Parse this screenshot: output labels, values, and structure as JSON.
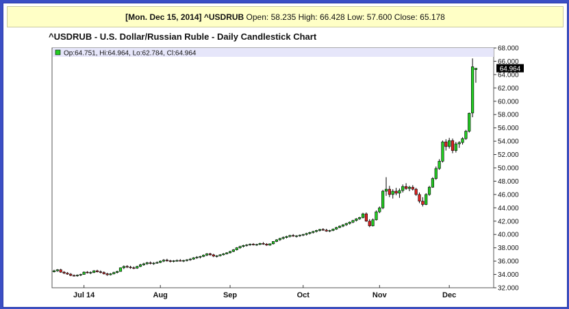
{
  "banner": {
    "date": "[Mon. Dec 15, 2014]",
    "symbol": "^USDRUB",
    "open_label": "Open:",
    "open": "58.235",
    "high_label": "High:",
    "high": "66.428",
    "low_label": "Low:",
    "low": "57.600",
    "close_label": "Close:",
    "close": "65.178"
  },
  "chart_title": "^USDRUB - U.S. Dollar/Russian Ruble - Daily Candlestick Chart",
  "legend": {
    "text": "Op:64.751, Hi:64.964, Lo:62.784, Cl:64.964",
    "swatch_color": "#22cc22"
  },
  "last_price_tag": "64.964",
  "colors": {
    "up": "#22cc22",
    "down": "#dd2222",
    "frame": "#3b4fc4",
    "legend_band": "#e6e6fa"
  },
  "chart_data": {
    "type": "candlestick",
    "title": "^USDRUB - U.S. Dollar/Russian Ruble - Daily Candlestick Chart",
    "ylim": [
      32,
      68
    ],
    "yticks": [
      "32.000",
      "34.000",
      "36.000",
      "38.000",
      "40.000",
      "42.000",
      "44.000",
      "46.000",
      "48.000",
      "50.000",
      "52.000",
      "54.000",
      "56.000",
      "58.000",
      "60.000",
      "62.000",
      "64.000",
      "66.000",
      "68.000"
    ],
    "ytick_values": [
      32,
      34,
      36,
      38,
      40,
      42,
      44,
      46,
      48,
      50,
      52,
      54,
      56,
      58,
      60,
      62,
      64,
      66,
      68
    ],
    "month_labels": [
      {
        "label": "Jul 14",
        "index": 9
      },
      {
        "label": "Aug",
        "index": 32
      },
      {
        "label": "Sep",
        "index": 53
      },
      {
        "label": "Oct",
        "index": 75
      },
      {
        "label": "Nov",
        "index": 98
      },
      {
        "label": "Dec",
        "index": 119
      }
    ],
    "ohlc": [
      [
        34.4,
        34.7,
        34.3,
        34.55
      ],
      [
        34.55,
        34.8,
        34.4,
        34.7
      ],
      [
        34.7,
        34.85,
        34.25,
        34.35
      ],
      [
        34.35,
        34.5,
        34.05,
        34.2
      ],
      [
        34.2,
        34.35,
        33.95,
        34.05
      ],
      [
        34.05,
        34.2,
        33.75,
        33.85
      ],
      [
        33.85,
        34.0,
        33.7,
        33.8
      ],
      [
        33.8,
        34.0,
        33.65,
        33.9
      ],
      [
        33.9,
        34.1,
        33.75,
        34.0
      ],
      [
        34.0,
        34.45,
        33.95,
        34.35
      ],
      [
        34.35,
        34.5,
        34.15,
        34.25
      ],
      [
        34.25,
        34.45,
        34.05,
        34.3
      ],
      [
        34.3,
        34.65,
        34.2,
        34.55
      ],
      [
        34.55,
        34.7,
        34.3,
        34.4
      ],
      [
        34.4,
        34.6,
        34.15,
        34.3
      ],
      [
        34.3,
        34.45,
        34.0,
        34.1
      ],
      [
        34.1,
        34.25,
        33.8,
        33.95
      ],
      [
        33.95,
        34.2,
        33.85,
        34.1
      ],
      [
        34.1,
        34.4,
        34.0,
        34.3
      ],
      [
        34.3,
        34.55,
        34.15,
        34.45
      ],
      [
        34.45,
        35.05,
        34.4,
        35.0
      ],
      [
        35.0,
        35.35,
        34.8,
        35.2
      ],
      [
        35.2,
        35.4,
        34.95,
        35.1
      ],
      [
        35.1,
        35.3,
        34.85,
        35.0
      ],
      [
        35.0,
        35.2,
        34.8,
        34.95
      ],
      [
        34.95,
        35.3,
        34.85,
        35.2
      ],
      [
        35.2,
        35.6,
        35.1,
        35.45
      ],
      [
        35.45,
        35.75,
        35.3,
        35.6
      ],
      [
        35.6,
        35.9,
        35.45,
        35.75
      ],
      [
        35.75,
        35.95,
        35.5,
        35.65
      ],
      [
        35.65,
        35.85,
        35.45,
        35.7
      ],
      [
        35.7,
        35.95,
        35.6,
        35.8
      ],
      [
        35.8,
        36.1,
        35.7,
        36.0
      ],
      [
        36.0,
        36.3,
        35.85,
        36.15
      ],
      [
        36.15,
        36.35,
        35.9,
        36.05
      ],
      [
        36.05,
        36.2,
        35.8,
        35.95
      ],
      [
        35.95,
        36.15,
        35.8,
        36.05
      ],
      [
        36.05,
        36.25,
        35.9,
        36.1
      ],
      [
        36.1,
        36.3,
        35.95,
        36.0
      ],
      [
        36.0,
        36.2,
        35.85,
        36.1
      ],
      [
        36.1,
        36.3,
        35.95,
        36.2
      ],
      [
        36.2,
        36.45,
        36.05,
        36.3
      ],
      [
        36.3,
        36.6,
        36.2,
        36.5
      ],
      [
        36.5,
        36.75,
        36.35,
        36.6
      ],
      [
        36.6,
        36.8,
        36.4,
        36.7
      ],
      [
        36.7,
        37.0,
        36.6,
        36.9
      ],
      [
        36.9,
        37.2,
        36.75,
        37.1
      ],
      [
        37.1,
        37.25,
        36.8,
        36.95
      ],
      [
        36.95,
        37.1,
        36.6,
        36.75
      ],
      [
        36.75,
        36.9,
        36.55,
        36.8
      ],
      [
        36.8,
        37.05,
        36.7,
        36.95
      ],
      [
        36.95,
        37.2,
        36.85,
        37.1
      ],
      [
        37.1,
        37.35,
        37.0,
        37.25
      ],
      [
        37.25,
        37.55,
        37.15,
        37.45
      ],
      [
        37.45,
        37.8,
        37.35,
        37.7
      ],
      [
        37.7,
        38.1,
        37.6,
        38.0
      ],
      [
        38.0,
        38.3,
        37.85,
        38.2
      ],
      [
        38.2,
        38.45,
        38.05,
        38.35
      ],
      [
        38.35,
        38.55,
        38.2,
        38.45
      ],
      [
        38.45,
        38.65,
        38.3,
        38.55
      ],
      [
        38.55,
        38.7,
        38.35,
        38.45
      ],
      [
        38.45,
        38.6,
        38.3,
        38.5
      ],
      [
        38.5,
        38.75,
        38.4,
        38.65
      ],
      [
        38.65,
        38.85,
        38.45,
        38.55
      ],
      [
        38.55,
        38.7,
        38.3,
        38.4
      ],
      [
        38.4,
        38.65,
        38.3,
        38.6
      ],
      [
        38.6,
        39.0,
        38.5,
        38.95
      ],
      [
        38.95,
        39.3,
        38.85,
        39.2
      ],
      [
        39.2,
        39.5,
        39.05,
        39.4
      ],
      [
        39.4,
        39.7,
        39.25,
        39.55
      ],
      [
        39.55,
        39.8,
        39.4,
        39.7
      ],
      [
        39.7,
        39.95,
        39.55,
        39.85
      ],
      [
        39.85,
        40.05,
        39.65,
        39.75
      ],
      [
        39.75,
        39.9,
        39.55,
        39.8
      ],
      [
        39.8,
        40.0,
        39.65,
        39.9
      ],
      [
        39.9,
        40.1,
        39.75,
        40.0
      ],
      [
        40.0,
        40.25,
        39.85,
        40.15
      ],
      [
        40.15,
        40.4,
        40.0,
        40.3
      ],
      [
        40.3,
        40.55,
        40.15,
        40.45
      ],
      [
        40.45,
        40.7,
        40.3,
        40.6
      ],
      [
        40.6,
        40.85,
        40.45,
        40.75
      ],
      [
        40.75,
        40.95,
        40.55,
        40.65
      ],
      [
        40.65,
        40.85,
        40.4,
        40.5
      ],
      [
        40.5,
        40.7,
        40.35,
        40.6
      ],
      [
        40.6,
        40.9,
        40.5,
        40.8
      ],
      [
        40.8,
        41.15,
        40.7,
        41.05
      ],
      [
        41.05,
        41.35,
        40.95,
        41.25
      ],
      [
        41.25,
        41.55,
        41.1,
        41.45
      ],
      [
        41.45,
        41.75,
        41.3,
        41.65
      ],
      [
        41.65,
        41.95,
        41.5,
        41.85
      ],
      [
        41.85,
        42.2,
        41.7,
        42.1
      ],
      [
        42.1,
        42.45,
        41.95,
        42.35
      ],
      [
        42.35,
        42.65,
        42.2,
        42.55
      ],
      [
        42.55,
        43.25,
        42.4,
        43.1
      ],
      [
        43.1,
        43.3,
        41.9,
        42.0
      ],
      [
        42.0,
        42.3,
        41.1,
        41.3
      ],
      [
        41.3,
        42.4,
        41.2,
        42.2
      ],
      [
        42.2,
        43.6,
        42.1,
        43.4
      ],
      [
        43.4,
        44.2,
        43.2,
        44.0
      ],
      [
        44.0,
        46.7,
        43.8,
        46.5
      ],
      [
        46.5,
        48.6,
        45.8,
        46.8
      ],
      [
        46.8,
        47.3,
        45.6,
        46.0
      ],
      [
        46.0,
        46.8,
        45.4,
        46.5
      ],
      [
        46.5,
        47.0,
        45.9,
        46.2
      ],
      [
        46.2,
        46.9,
        45.5,
        46.6
      ],
      [
        46.6,
        47.5,
        46.3,
        47.2
      ],
      [
        47.2,
        47.7,
        46.7,
        46.9
      ],
      [
        46.9,
        47.3,
        46.5,
        47.1
      ],
      [
        47.1,
        47.4,
        46.6,
        46.8
      ],
      [
        46.8,
        47.0,
        45.8,
        46.0
      ],
      [
        46.0,
        46.3,
        44.7,
        45.0
      ],
      [
        45.0,
        45.6,
        44.2,
        44.5
      ],
      [
        44.5,
        46.2,
        44.4,
        46.0
      ],
      [
        46.0,
        47.3,
        45.8,
        47.1
      ],
      [
        47.1,
        48.6,
        47.0,
        48.4
      ],
      [
        48.4,
        50.2,
        48.2,
        49.9
      ],
      [
        49.9,
        51.3,
        49.7,
        51.0
      ],
      [
        51.0,
        54.1,
        50.8,
        53.9
      ],
      [
        53.9,
        54.3,
        52.6,
        53.2
      ],
      [
        53.2,
        54.5,
        52.9,
        54.1
      ],
      [
        54.1,
        54.4,
        52.2,
        52.6
      ],
      [
        52.6,
        53.9,
        52.3,
        53.6
      ],
      [
        53.6,
        54.0,
        53.0,
        53.8
      ],
      [
        53.8,
        54.6,
        53.5,
        54.4
      ],
      [
        54.4,
        55.7,
        54.2,
        55.5
      ],
      [
        55.5,
        58.3,
        55.3,
        58.2
      ],
      [
        58.24,
        66.43,
        57.6,
        65.18
      ],
      [
        64.75,
        64.96,
        62.78,
        64.96
      ]
    ]
  }
}
